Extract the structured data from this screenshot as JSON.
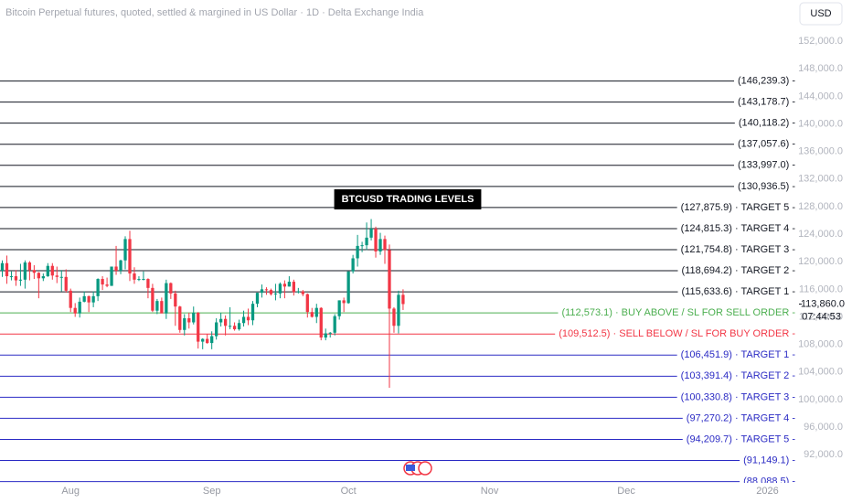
{
  "chart_data": {
    "type": "candlestick",
    "title": "Bitcoin Perpetual futures, quoted, settled & margined in US Dollar · 1D · Delta Exchange India",
    "currency_button": "USD",
    "annotation": "BTCUSD TRADING LEVELS",
    "up_color": "#089981",
    "down_color": "#f23645",
    "ylim": [
      87900,
      158000
    ],
    "yticks": [
      {
        "value": 92000,
        "label": "92,000.0"
      },
      {
        "value": 96000,
        "label": "96,000.0"
      },
      {
        "value": 100000,
        "label": "100,000.0"
      },
      {
        "value": 104000,
        "label": "104,000.0"
      },
      {
        "value": 108000,
        "label": "108,000.0"
      },
      {
        "value": 112000,
        "label": "112,000.0"
      },
      {
        "value": 116000,
        "label": "116,000.0"
      },
      {
        "value": 120000,
        "label": "120,000.0"
      },
      {
        "value": 124000,
        "label": "124,000.0"
      },
      {
        "value": 128000,
        "label": "128,000.0"
      },
      {
        "value": 132000,
        "label": "132,000.0"
      },
      {
        "value": 136000,
        "label": "136,000.0"
      },
      {
        "value": 140000,
        "label": "140,000.0"
      },
      {
        "value": 144000,
        "label": "144,000.0"
      },
      {
        "value": 148000,
        "label": "148,000.0"
      },
      {
        "value": 152000,
        "label": "152,000.0"
      }
    ],
    "last_price": {
      "value": 113860.0,
      "label": "113,860.0"
    },
    "countdown": "07:44:53",
    "categories": [
      null,
      null,
      null,
      null,
      null,
      null,
      null,
      null,
      null,
      null,
      null,
      null,
      null,
      null,
      null,
      "Aug",
      null,
      null,
      null,
      null,
      null,
      null,
      null,
      null,
      null,
      null,
      null,
      null,
      null,
      null,
      null,
      null,
      null,
      null,
      null,
      null,
      null,
      null,
      null,
      null,
      null,
      null,
      null,
      null,
      null,
      null,
      "Sep",
      null,
      null,
      null,
      null,
      null,
      null,
      null,
      null,
      null,
      null,
      null,
      null,
      null,
      null,
      null,
      null,
      null,
      null,
      null,
      null,
      null,
      null,
      null,
      null,
      null,
      null,
      null,
      null,
      null,
      "Oct",
      null,
      null,
      null,
      null,
      null,
      null,
      null,
      null,
      null,
      null,
      null,
      null,
      null,
      null,
      null,
      null,
      null,
      null,
      null,
      null,
      null,
      null,
      null,
      null,
      null,
      null,
      null,
      null,
      null,
      null,
      "Nov",
      null,
      null,
      null,
      null,
      null,
      null,
      null,
      null,
      null,
      null,
      null,
      null,
      null,
      null,
      null,
      null,
      null,
      null,
      null,
      null,
      null,
      null,
      null,
      null,
      null,
      null,
      null,
      null,
      null,
      "Dec",
      null,
      null,
      null,
      null,
      null,
      null,
      null,
      null,
      null,
      null,
      null,
      null,
      null,
      null,
      null,
      null,
      null,
      null,
      null,
      null,
      null,
      null,
      null,
      null,
      null,
      null,
      null,
      null,
      null,
      null,
      "2026"
    ],
    "candles": [
      [
        118700,
        120200,
        117800,
        119800
      ],
      [
        119800,
        120900,
        116800,
        117900
      ],
      [
        117900,
        118600,
        117300,
        117900
      ],
      [
        117900,
        118800,
        116500,
        117300
      ],
      [
        117300,
        119700,
        116500,
        117400
      ],
      [
        117400,
        120200,
        116100,
        119900
      ],
      [
        119900,
        120100,
        117300,
        118800
      ],
      [
        118800,
        119500,
        117500,
        118400
      ],
      [
        118400,
        118500,
        114700,
        117600
      ],
      [
        117600,
        118300,
        117200,
        117900
      ],
      [
        117900,
        119800,
        117800,
        119400
      ],
      [
        119400,
        119800,
        117400,
        118000
      ],
      [
        118000,
        119300,
        116900,
        117800
      ],
      [
        117800,
        118800,
        115700,
        117800
      ],
      [
        117800,
        118900,
        115500,
        115800
      ],
      [
        115800,
        116100,
        112700,
        113300
      ],
      [
        113300,
        114000,
        112000,
        112500
      ],
      [
        112500,
        114800,
        111900,
        114200
      ],
      [
        114200,
        115700,
        114100,
        115000
      ],
      [
        115000,
        115100,
        112700,
        114100
      ],
      [
        114100,
        115700,
        113400,
        115000
      ],
      [
        115000,
        117600,
        114300,
        117500
      ],
      [
        117500,
        117900,
        115900,
        116700
      ],
      [
        116700,
        117700,
        116300,
        116500
      ],
      [
        116500,
        119300,
        116500,
        119300
      ],
      [
        119300,
        122300,
        118100,
        118700
      ],
      [
        118700,
        120300,
        118200,
        120200
      ],
      [
        120200,
        123700,
        118900,
        123300
      ],
      [
        123300,
        124500,
        117200,
        118300
      ],
      [
        118300,
        119200,
        116800,
        117400
      ],
      [
        117400,
        117900,
        117200,
        117500
      ],
      [
        117500,
        118600,
        117300,
        117500
      ],
      [
        117500,
        117600,
        114700,
        116200
      ],
      [
        116200,
        116800,
        112700,
        112900
      ],
      [
        112900,
        114600,
        112400,
        114300
      ],
      [
        114300,
        114800,
        112600,
        112500
      ],
      [
        112500,
        117400,
        111700,
        116900
      ],
      [
        116900,
        117000,
        114600,
        115400
      ],
      [
        115400,
        115800,
        110700,
        113500
      ],
      [
        113500,
        113600,
        109700,
        110100
      ],
      [
        110100,
        112400,
        109300,
        111800
      ],
      [
        111800,
        112600,
        110300,
        111200
      ],
      [
        111200,
        113500,
        110900,
        112600
      ],
      [
        112600,
        112700,
        107400,
        108400
      ],
      [
        108400,
        108900,
        107300,
        108800
      ],
      [
        108800,
        109500,
        108100,
        108200
      ],
      [
        108200,
        109900,
        107300,
        109200
      ],
      [
        109200,
        111800,
        108700,
        111200
      ],
      [
        111200,
        112600,
        110600,
        111700
      ],
      [
        111700,
        112200,
        109300,
        110700
      ],
      [
        110700,
        113400,
        110200,
        110700
      ],
      [
        110700,
        111200,
        110000,
        110200
      ],
      [
        110200,
        111600,
        110000,
        111100
      ],
      [
        111100,
        112900,
        110600,
        112000
      ],
      [
        112000,
        113200,
        110800,
        111500
      ],
      [
        111500,
        114300,
        110800,
        113900
      ],
      [
        113900,
        115500,
        113400,
        115500
      ],
      [
        115500,
        116700,
        114800,
        116000
      ],
      [
        116000,
        116300,
        115200,
        115900
      ],
      [
        115900,
        116100,
        115100,
        115300
      ],
      [
        115300,
        116800,
        114400,
        115400
      ],
      [
        115400,
        117000,
        114700,
        116800
      ],
      [
        116800,
        117300,
        114700,
        116400
      ],
      [
        116400,
        117900,
        116400,
        117100
      ],
      [
        117100,
        117400,
        115100,
        115600
      ],
      [
        115600,
        116200,
        115400,
        115700
      ],
      [
        115700,
        115900,
        115000,
        115300
      ],
      [
        115300,
        115400,
        111900,
        112700
      ],
      [
        112700,
        113300,
        111900,
        112000
      ],
      [
        112000,
        113900,
        111100,
        113300
      ],
      [
        113300,
        113400,
        108600,
        109000
      ],
      [
        109000,
        110300,
        108600,
        109600
      ],
      [
        109600,
        109800,
        109000,
        109700
      ],
      [
        109700,
        112400,
        109300,
        112100
      ],
      [
        112100,
        114400,
        111600,
        114400
      ],
      [
        114400,
        114800,
        112700,
        114000
      ],
      [
        114000,
        118600,
        113900,
        118600
      ],
      [
        118600,
        121000,
        118300,
        120500
      ],
      [
        120500,
        123900,
        119300,
        122300
      ],
      [
        122300,
        122900,
        121400,
        122400
      ],
      [
        122400,
        125700,
        121700,
        123500
      ],
      [
        123500,
        126200,
        123100,
        124800
      ],
      [
        124800,
        125100,
        120600,
        121500
      ],
      [
        121500,
        124200,
        121000,
        123300
      ],
      [
        123300,
        123800,
        119700,
        121700
      ],
      [
        121700,
        122500,
        101700,
        113200
      ],
      [
        113200,
        113400,
        109700,
        110700
      ],
      [
        110700,
        115800,
        109600,
        115200
      ],
      [
        115200,
        116000,
        113000,
        113860
      ],
      null,
      null,
      null,
      null,
      null,
      null,
      null,
      null,
      null,
      null,
      null,
      null,
      null,
      null,
      null,
      null,
      null,
      null,
      null,
      null,
      null,
      null,
      null,
      null,
      null,
      null,
      null,
      null,
      null,
      null,
      null,
      null,
      null,
      null,
      null,
      null,
      null,
      null,
      null,
      null,
      null,
      null,
      null,
      null,
      null,
      null,
      null,
      null,
      null,
      null,
      null,
      null,
      null,
      null,
      null,
      null,
      null,
      null,
      null,
      null,
      null,
      null,
      null,
      null,
      null,
      null,
      null,
      null,
      null,
      null,
      null,
      null,
      null,
      null,
      null,
      null,
      null,
      null,
      null,
      null
    ],
    "levels": [
      {
        "value": 146239.3,
        "label": "(146,239.3) -",
        "color": "#131722"
      },
      {
        "value": 143178.7,
        "label": "(143,178.7) -",
        "color": "#131722"
      },
      {
        "value": 140118.2,
        "label": "(140,118.2) -",
        "color": "#131722"
      },
      {
        "value": 137057.6,
        "label": "(137,057.6) -",
        "color": "#131722"
      },
      {
        "value": 133997.0,
        "label": "(133,997.0) -",
        "color": "#131722"
      },
      {
        "value": 130936.5,
        "label": "(130,936.5) -",
        "color": "#131722"
      },
      {
        "value": 127875.9,
        "label": "(127,875.9) · TARGET 5 -",
        "color": "#131722"
      },
      {
        "value": 124815.3,
        "label": "(124,815.3) · TARGET 4 -",
        "color": "#131722"
      },
      {
        "value": 121754.8,
        "label": "(121,754.8) · TARGET 3 -",
        "color": "#131722"
      },
      {
        "value": 118694.2,
        "label": "(118,694.2) · TARGET 2 -",
        "color": "#131722"
      },
      {
        "value": 115633.6,
        "label": "(115,633.6) · TARGET 1 -",
        "color": "#131722"
      },
      {
        "value": 112573.1,
        "label": "(112,573.1) · BUY ABOVE / SL FOR SELL ORDER -",
        "color": "#4caf50"
      },
      {
        "value": 109512.5,
        "label": "(109,512.5) · SELL BELOW / SL FOR BUY ORDER -",
        "color": "#f23645"
      },
      {
        "value": 106451.9,
        "label": "(106,451.9) · TARGET 1 -",
        "color": "#2b2bc4"
      },
      {
        "value": 103391.4,
        "label": "(103,391.4) · TARGET 2 -",
        "color": "#2b2bc4"
      },
      {
        "value": 100330.8,
        "label": "(100,330.8) · TARGET 3 -",
        "color": "#2b2bc4"
      },
      {
        "value": 97270.2,
        "label": "(97,270.2) · TARGET 4 -",
        "color": "#2b2bc4"
      },
      {
        "value": 94209.7,
        "label": "(94,209.7) · TARGET 5 -",
        "color": "#2b2bc4"
      },
      {
        "value": 91149.1,
        "label": "(91,149.1) -",
        "color": "#2b2bc4"
      },
      {
        "value": 88088.5,
        "label": "(88,088.5) -",
        "color": "#2b2bc4"
      }
    ]
  }
}
